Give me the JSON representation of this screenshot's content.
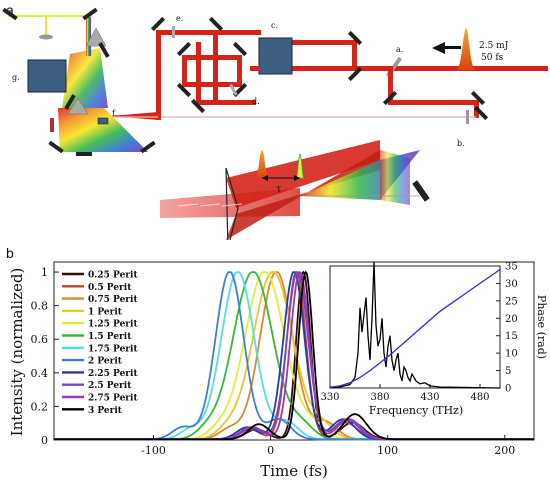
{
  "panel_a": {
    "label": "a",
    "component_labels": [
      "a.",
      "b.",
      "c.",
      "d.",
      "e.",
      "f.",
      "g."
    ],
    "pulse_energy": "2.5 mJ",
    "pulse_duration": "50 fs",
    "delay_symbol": "τ"
  },
  "panel_b": {
    "label": "b",
    "xlabel": "Time (fs)",
    "ylabel": "Intensity (normalized)",
    "inset": {
      "xlabel": "Frequency (THz)",
      "ylabel": "Phase (rad)"
    }
  },
  "colors": {
    "beam": "#d4241a",
    "legend_black": "#000000"
  },
  "chart_data": [
    {
      "type": "line",
      "title": "",
      "xlabel": "Time (fs)",
      "ylabel": "Intensity (normalized)",
      "xlim": [
        -185,
        225
      ],
      "ylim": [
        0,
        1.06
      ],
      "xticks": [
        -100,
        0,
        100,
        200
      ],
      "yticks": [
        0,
        0.2,
        0.4,
        0.6,
        0.8,
        1
      ],
      "legend_position": "top-left",
      "series": [
        {
          "name": "0.25 Perit",
          "color": "#3a0d0d",
          "center": 28,
          "width": 6,
          "side": 0.1
        },
        {
          "name": "0.5 Perit",
          "color": "#c1442a",
          "center": 22,
          "width": 8,
          "side": 0.1
        },
        {
          "name": "0.75 Perit",
          "color": "#d88a2e",
          "center": 5,
          "width": 14,
          "side": 0.1
        },
        {
          "name": "1 Perit",
          "color": "#f2c22c",
          "center": 2,
          "width": 17,
          "side": 0.08
        },
        {
          "name": "1.25 Perit",
          "color": "#e4ec37",
          "center": -5,
          "width": 17,
          "side": 0.08
        },
        {
          "name": "1.5 Perit",
          "color": "#35b832",
          "center": -15,
          "width": 17,
          "side": 0.08
        },
        {
          "name": "1.75 Perit",
          "color": "#54dede",
          "center": -28,
          "width": 14,
          "side": 0.1
        },
        {
          "name": "2 Perit",
          "color": "#3d7fd6",
          "center": -35,
          "width": 12,
          "side": 0.12
        },
        {
          "name": "2.25 Perit",
          "color": "#223da6",
          "center": 20,
          "width": 9,
          "side": 0.12
        },
        {
          "name": "2.5 Perit",
          "color": "#7447c9",
          "center": 23,
          "width": 9,
          "side": 0.12
        },
        {
          "name": "2.75 Perit",
          "color": "#9a3ab0",
          "center": 25,
          "width": 8,
          "side": 0.12
        },
        {
          "name": "3 Perit",
          "color": "#000000",
          "center": 30,
          "width": 6,
          "side": 0.15
        }
      ]
    },
    {
      "type": "line",
      "title": "",
      "xlabel": "Frequency (THz)",
      "ylabel": "Phase (rad)",
      "xlim": [
        330,
        500
      ],
      "ylim": [
        0,
        35
      ],
      "xticks": [
        330,
        380,
        430,
        480
      ],
      "yticks": [
        0,
        5,
        10,
        15,
        20,
        25,
        30,
        35
      ],
      "series": [
        {
          "name": "",
          "color": "#000000",
          "x": [
            330,
            340,
            350,
            355,
            358,
            360,
            362,
            364,
            366,
            368,
            370,
            372,
            374,
            376,
            378,
            380,
            382,
            384,
            386,
            388,
            390,
            392,
            394,
            396,
            398,
            400,
            402,
            404,
            406,
            408,
            410,
            412,
            414,
            416,
            420,
            425,
            430,
            440,
            500
          ],
          "y": [
            0,
            0.3,
            1,
            3,
            10,
            23,
            16,
            21,
            26,
            15,
            8,
            20,
            36,
            18,
            12,
            14,
            20,
            10,
            6,
            12,
            15,
            8,
            5,
            8,
            10,
            4,
            2,
            6,
            5,
            3,
            2,
            4,
            3,
            2,
            1.2,
            1.5,
            0.6,
            0.3,
            0
          ]
        },
        {
          "name": "",
          "color": "#2b2bd0",
          "x": [
            330,
            340,
            350,
            360,
            370,
            380,
            390,
            400,
            410,
            420,
            430,
            440,
            450,
            460,
            470,
            480,
            490,
            500
          ],
          "y": [
            0.2,
            0.6,
            1.5,
            3,
            5,
            7.2,
            9.5,
            12,
            14.5,
            17,
            19.5,
            22,
            24,
            26,
            28,
            30,
            32,
            34
          ]
        }
      ]
    }
  ]
}
